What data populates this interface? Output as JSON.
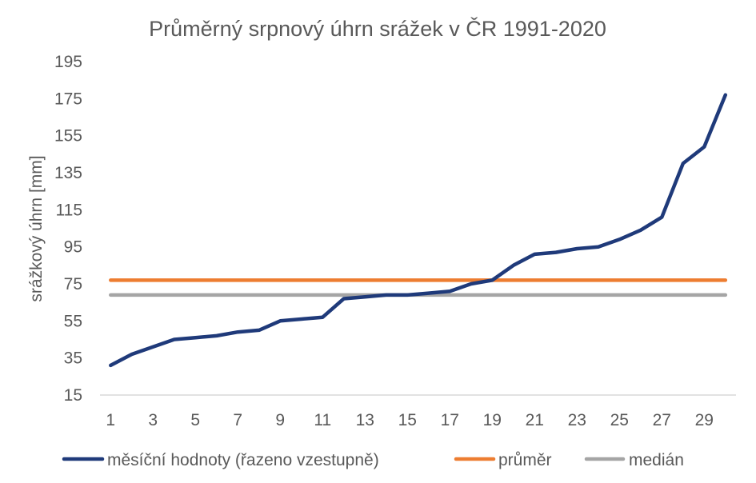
{
  "chart_data": {
    "type": "line",
    "title": "Průměrný srpnový úhrn srážek v ČR 1991-2020",
    "xlabel": "",
    "ylabel": "srážkový úhrn [mm]",
    "x": [
      1,
      2,
      3,
      4,
      5,
      6,
      7,
      8,
      9,
      10,
      11,
      12,
      13,
      14,
      15,
      16,
      17,
      18,
      19,
      20,
      21,
      22,
      23,
      24,
      25,
      26,
      27,
      28,
      29,
      30
    ],
    "x_ticks": [
      "1",
      "3",
      "5",
      "7",
      "9",
      "11",
      "13",
      "15",
      "17",
      "19",
      "21",
      "23",
      "25",
      "27",
      "29"
    ],
    "y_ticks": [
      "15",
      "35",
      "55",
      "75",
      "95",
      "115",
      "135",
      "155",
      "175",
      "195"
    ],
    "ylim": [
      15,
      195
    ],
    "grid": false,
    "legend_position": "bottom",
    "series": [
      {
        "name": "měsíční hodnoty (řazeno vzestupně)",
        "color": "#1f3a7a",
        "values": [
          31,
          37,
          41,
          45,
          46,
          47,
          49,
          50,
          55,
          56,
          57,
          67,
          68,
          69,
          69,
          70,
          71,
          75,
          77,
          85,
          91,
          92,
          94,
          95,
          99,
          104,
          111,
          140,
          149,
          177
        ]
      },
      {
        "name": "průměr",
        "color": "#ed7d31",
        "values": [
          77,
          77,
          77,
          77,
          77,
          77,
          77,
          77,
          77,
          77,
          77,
          77,
          77,
          77,
          77,
          77,
          77,
          77,
          77,
          77,
          77,
          77,
          77,
          77,
          77,
          77,
          77,
          77,
          77,
          77
        ]
      },
      {
        "name": "medián",
        "color": "#a5a5a5",
        "values": [
          69,
          69,
          69,
          69,
          69,
          69,
          69,
          69,
          69,
          69,
          69,
          69,
          69,
          69,
          69,
          69,
          69,
          69,
          69,
          69,
          69,
          69,
          69,
          69,
          69,
          69,
          69,
          69,
          69,
          69
        ]
      }
    ]
  }
}
